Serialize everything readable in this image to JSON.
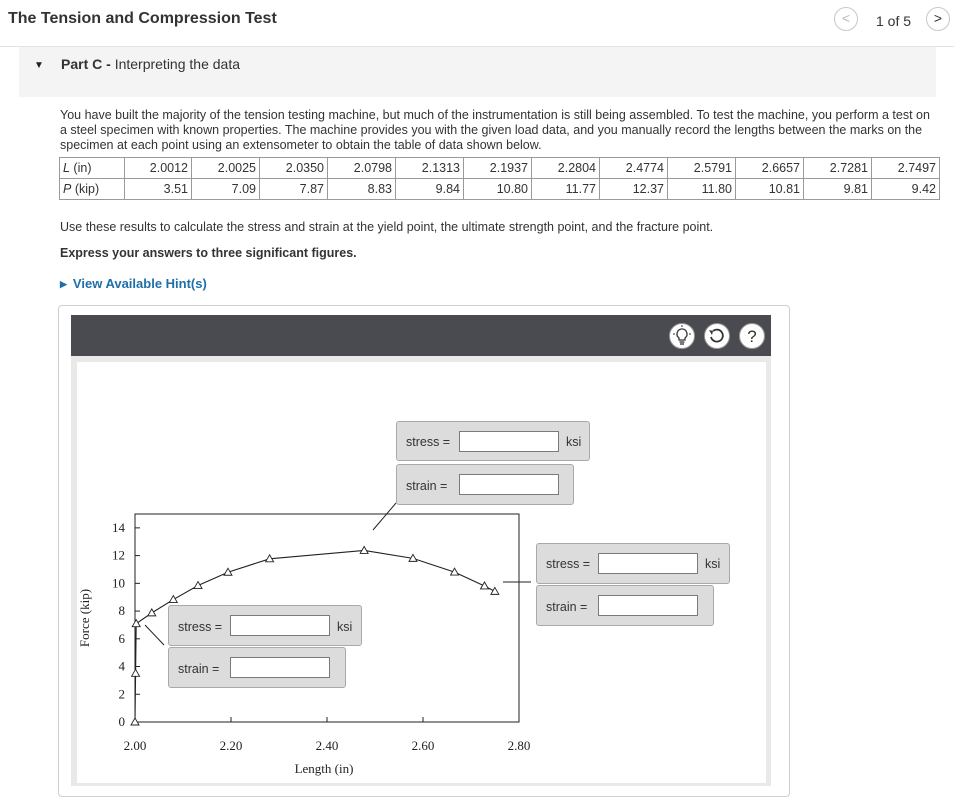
{
  "header": {
    "title": "The Tension and Compression Test",
    "page_count": "1 of 5",
    "prev_glyph": "<",
    "next_glyph": ">"
  },
  "part": {
    "label": "Part C -",
    "name": "Interpreting the data"
  },
  "intro_text": "You have built the majority of the tension testing machine, but much of the instrumentation is still being assembled. To test the machine, you perform a test on a steel specimen with known properties. The machine provides you with the given load data, and you manually record the lengths between the marks on the specimen at each point using an extensometer to obtain the table of data shown below.",
  "table": {
    "row1_label": "L",
    "row1_unit": " (in)",
    "row2_label": "P",
    "row2_unit": " (kip)",
    "L": [
      "2.0012",
      "2.0025",
      "2.0350",
      "2.0798",
      "2.1313",
      "2.1937",
      "2.2804",
      "2.4774",
      "2.5791",
      "2.6657",
      "2.7281",
      "2.7497"
    ],
    "P": [
      "3.51",
      "7.09",
      "7.87",
      "8.83",
      "9.84",
      "10.80",
      "11.77",
      "12.37",
      "11.80",
      "10.81",
      "9.81",
      "9.42"
    ]
  },
  "instructions": "Use these results to calculate the stress and strain at the yield point, the ultimate strength point, and the fracture point.",
  "express": "Express your answers to three significant figures.",
  "hint_link": "View Available Hint(s)",
  "toolbar": {
    "hint_icon": "lightbulb-icon",
    "reset_icon": "reset-icon",
    "help_glyph": "?"
  },
  "answers": {
    "stress_label": "stress =",
    "strain_label": "strain =",
    "unit": "ksi",
    "ultimate_stress_value": "",
    "ultimate_strain_value": "",
    "fracture_stress_value": "",
    "fracture_strain_value": "",
    "yield_stress_value": "",
    "yield_strain_value": ""
  },
  "chart_data": {
    "type": "line",
    "xlabel": "Length (in)",
    "ylabel": "Force (kip)",
    "xlim": [
      2.0,
      2.8
    ],
    "ylim": [
      0,
      15
    ],
    "x_ticks": [
      "2.00",
      "2.20",
      "2.40",
      "2.60",
      "2.80"
    ],
    "y_ticks": [
      "0",
      "2",
      "4",
      "6",
      "8",
      "10",
      "12",
      "14"
    ],
    "series": [
      {
        "x": [
          2.0,
          2.0012,
          2.0025,
          2.035,
          2.0798,
          2.1313,
          2.1937,
          2.2804,
          2.4774,
          2.5791,
          2.6657,
          2.7281,
          2.7497
        ],
        "y": [
          0,
          3.51,
          7.09,
          7.87,
          8.83,
          9.84,
          10.8,
          11.77,
          12.37,
          11.8,
          10.81,
          9.81,
          9.42
        ]
      }
    ],
    "marker": "triangle"
  }
}
